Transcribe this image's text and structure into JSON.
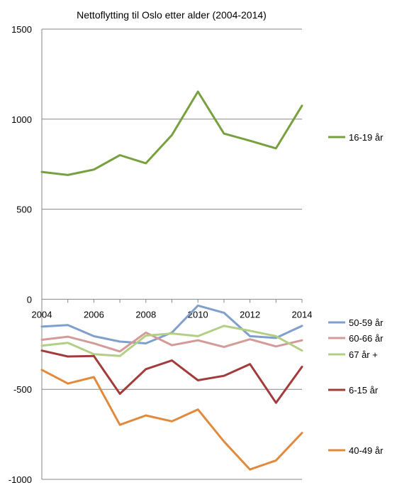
{
  "chart_data": {
    "type": "line",
    "title": "Nettoflytting til Oslo etter alder (2004-2014)",
    "xlabel": "",
    "ylabel": "",
    "x": [
      2004,
      2005,
      2006,
      2007,
      2008,
      2009,
      2010,
      2011,
      2012,
      2013,
      2014
    ],
    "x_tick_labels": [
      "2004",
      "2006",
      "2008",
      "2010",
      "2012",
      "2014"
    ],
    "xlim": [
      2004,
      2014
    ],
    "ylim": [
      -1000,
      1500
    ],
    "y_tick_labels": [
      "1500",
      "1000",
      "500",
      "0",
      "-500",
      "-1000"
    ],
    "grid": "horizontal",
    "legend_position": "right",
    "series": [
      {
        "name": "16-19 år",
        "color": "#77a03e",
        "values": [
          707,
          690,
          720,
          800,
          755,
          912,
          1153,
          920,
          880,
          838,
          1075
        ]
      },
      {
        "name": "50-59 år",
        "color": "#7f9fcc",
        "values": [
          -152,
          -143,
          -205,
          -235,
          -245,
          -185,
          -35,
          -75,
          -205,
          -215,
          -148
        ]
      },
      {
        "name": "60-66 år",
        "color": "#d49a98",
        "values": [
          -225,
          -208,
          -245,
          -290,
          -185,
          -255,
          -228,
          -265,
          -222,
          -262,
          -228
        ]
      },
      {
        "name": "67 år +",
        "color": "#b3cf85",
        "values": [
          -258,
          -242,
          -305,
          -315,
          -202,
          -190,
          -205,
          -148,
          -175,
          -205,
          -285
        ]
      },
      {
        "name": "6-15 år",
        "color": "#a23c3b",
        "values": [
          -285,
          -318,
          -315,
          -525,
          -388,
          -340,
          -450,
          -425,
          -360,
          -575,
          -375
        ]
      },
      {
        "name": "40-49 år",
        "color": "#e18a3e",
        "values": [
          -392,
          -468,
          -432,
          -697,
          -645,
          -678,
          -612,
          -790,
          -945,
          -895,
          -742
        ]
      }
    ]
  }
}
